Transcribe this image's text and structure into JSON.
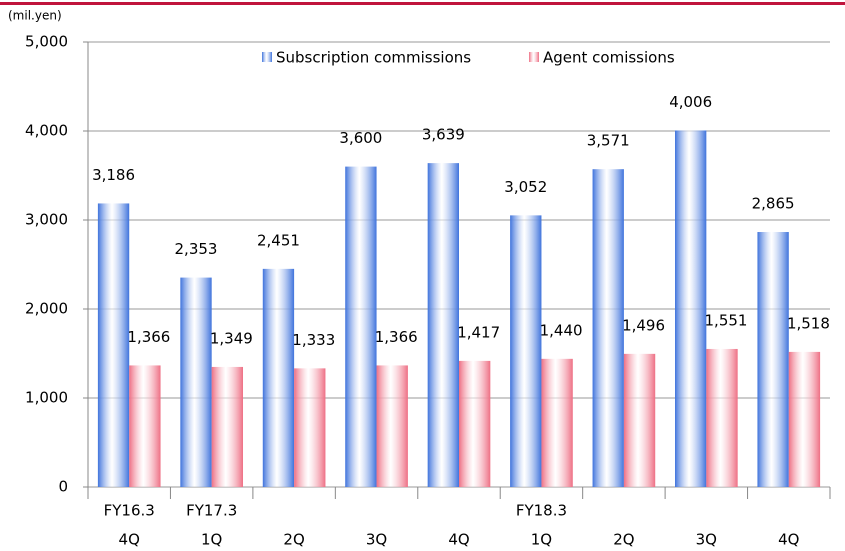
{
  "chart_data": {
    "type": "bar",
    "unit_label": "(mil.yen)",
    "categories": [
      "4Q",
      "1Q",
      "2Q",
      "3Q",
      "4Q",
      "1Q",
      "2Q",
      "3Q",
      "4Q"
    ],
    "fiscal_years": [
      "FY16.3",
      "FY17.3",
      null,
      null,
      null,
      "FY18.3",
      null,
      null,
      null
    ],
    "series": [
      {
        "name": "Subscription commissions",
        "color": "#3f73dc",
        "values": [
          3186,
          2353,
          2451,
          3600,
          3639,
          3052,
          3571,
          4006,
          2865
        ],
        "value_labels": [
          "3,186",
          "2,353",
          "2,451",
          "3,600",
          "3,639",
          "3,052",
          "3,571",
          "4,006",
          "2,865"
        ]
      },
      {
        "name": "Agent comissions",
        "color": "#ee6f84",
        "values": [
          1366,
          1349,
          1333,
          1366,
          1417,
          1440,
          1496,
          1551,
          1518
        ],
        "value_labels": [
          "1,366",
          "1,349",
          "1,333",
          "1,366",
          "1,417",
          "1,440",
          "1,496",
          "1,551",
          "1,518"
        ]
      }
    ],
    "ylim": [
      0,
      5000
    ],
    "yticks": [
      0,
      {
        "value": 1000,
        "label": "1,000"
      },
      {
        "value": 2000,
        "label": "2,000"
      },
      {
        "value": 3000,
        "label": "3,000"
      },
      {
        "value": 4000,
        "label": "4,000"
      },
      {
        "value": 5000,
        "label": "5,000"
      }
    ],
    "grid": true
  }
}
